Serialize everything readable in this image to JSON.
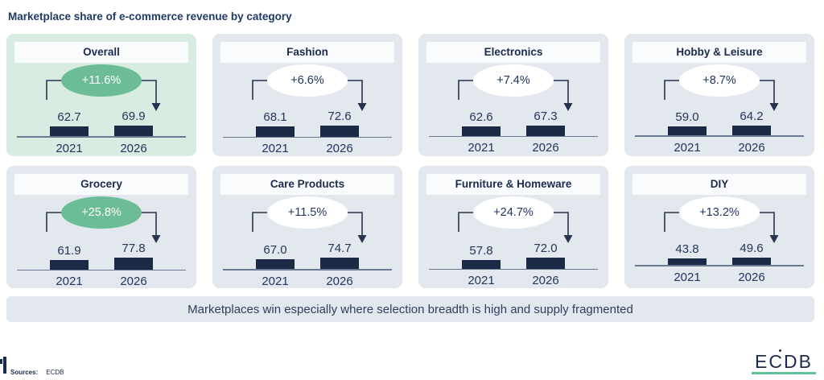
{
  "page_title": "Marketplace share of e-commerce revenue by category",
  "banner_text": "Marketplaces win especially where selection breadth is high and supply fragmented",
  "footer": {
    "sources_label": "Sources:",
    "sources_value": "ECDB",
    "logo_text": "ECDB"
  },
  "colors": {
    "card_bg": "#e3e7ee",
    "card_highlight_bg": "#d9ece2",
    "title_bar_bg": "#fafbfd",
    "badge_green": "#6cbc97",
    "bar": "#1b2a47",
    "baseline": "#6b7a92",
    "navy": "#22365c",
    "logo_green": "#5ec29a"
  },
  "chart_data": {
    "type": "bar",
    "title": "Marketplace share of e-commerce revenue by category",
    "categories": [
      "2021",
      "2026"
    ],
    "annotation": "Marketplaces win especially where selection breadth is high and supply fragmented",
    "legend_position": "none",
    "grid": false,
    "cards": [
      {
        "title": "Overall",
        "change": "+11.6%",
        "values": [
          "62.7",
          "69.9"
        ],
        "highlight_card": true,
        "badge_green": true
      },
      {
        "title": "Fashion",
        "change": "+6.6%",
        "values": [
          "68.1",
          "72.6"
        ],
        "highlight_card": false,
        "badge_green": false
      },
      {
        "title": "Electronics",
        "change": "+7.4%",
        "values": [
          "62.6",
          "67.3"
        ],
        "highlight_card": false,
        "badge_green": false
      },
      {
        "title": "Hobby & Leisure",
        "change": "+8.7%",
        "values": [
          "59.0",
          "64.2"
        ],
        "highlight_card": false,
        "badge_green": false
      },
      {
        "title": "Grocery",
        "change": "+25.8%",
        "values": [
          "61.9",
          "77.8"
        ],
        "highlight_card": false,
        "badge_green": true
      },
      {
        "title": "Care Products",
        "change": "+11.5%",
        "values": [
          "67.0",
          "74.7"
        ],
        "highlight_card": false,
        "badge_green": false
      },
      {
        "title": "Furniture & Homeware",
        "change": "+24.7%",
        "values": [
          "57.8",
          "72.0"
        ],
        "highlight_card": false,
        "badge_green": false
      },
      {
        "title": "DIY",
        "change": "+13.2%",
        "values": [
          "43.8",
          "49.6"
        ],
        "highlight_card": false,
        "badge_green": false
      }
    ]
  }
}
